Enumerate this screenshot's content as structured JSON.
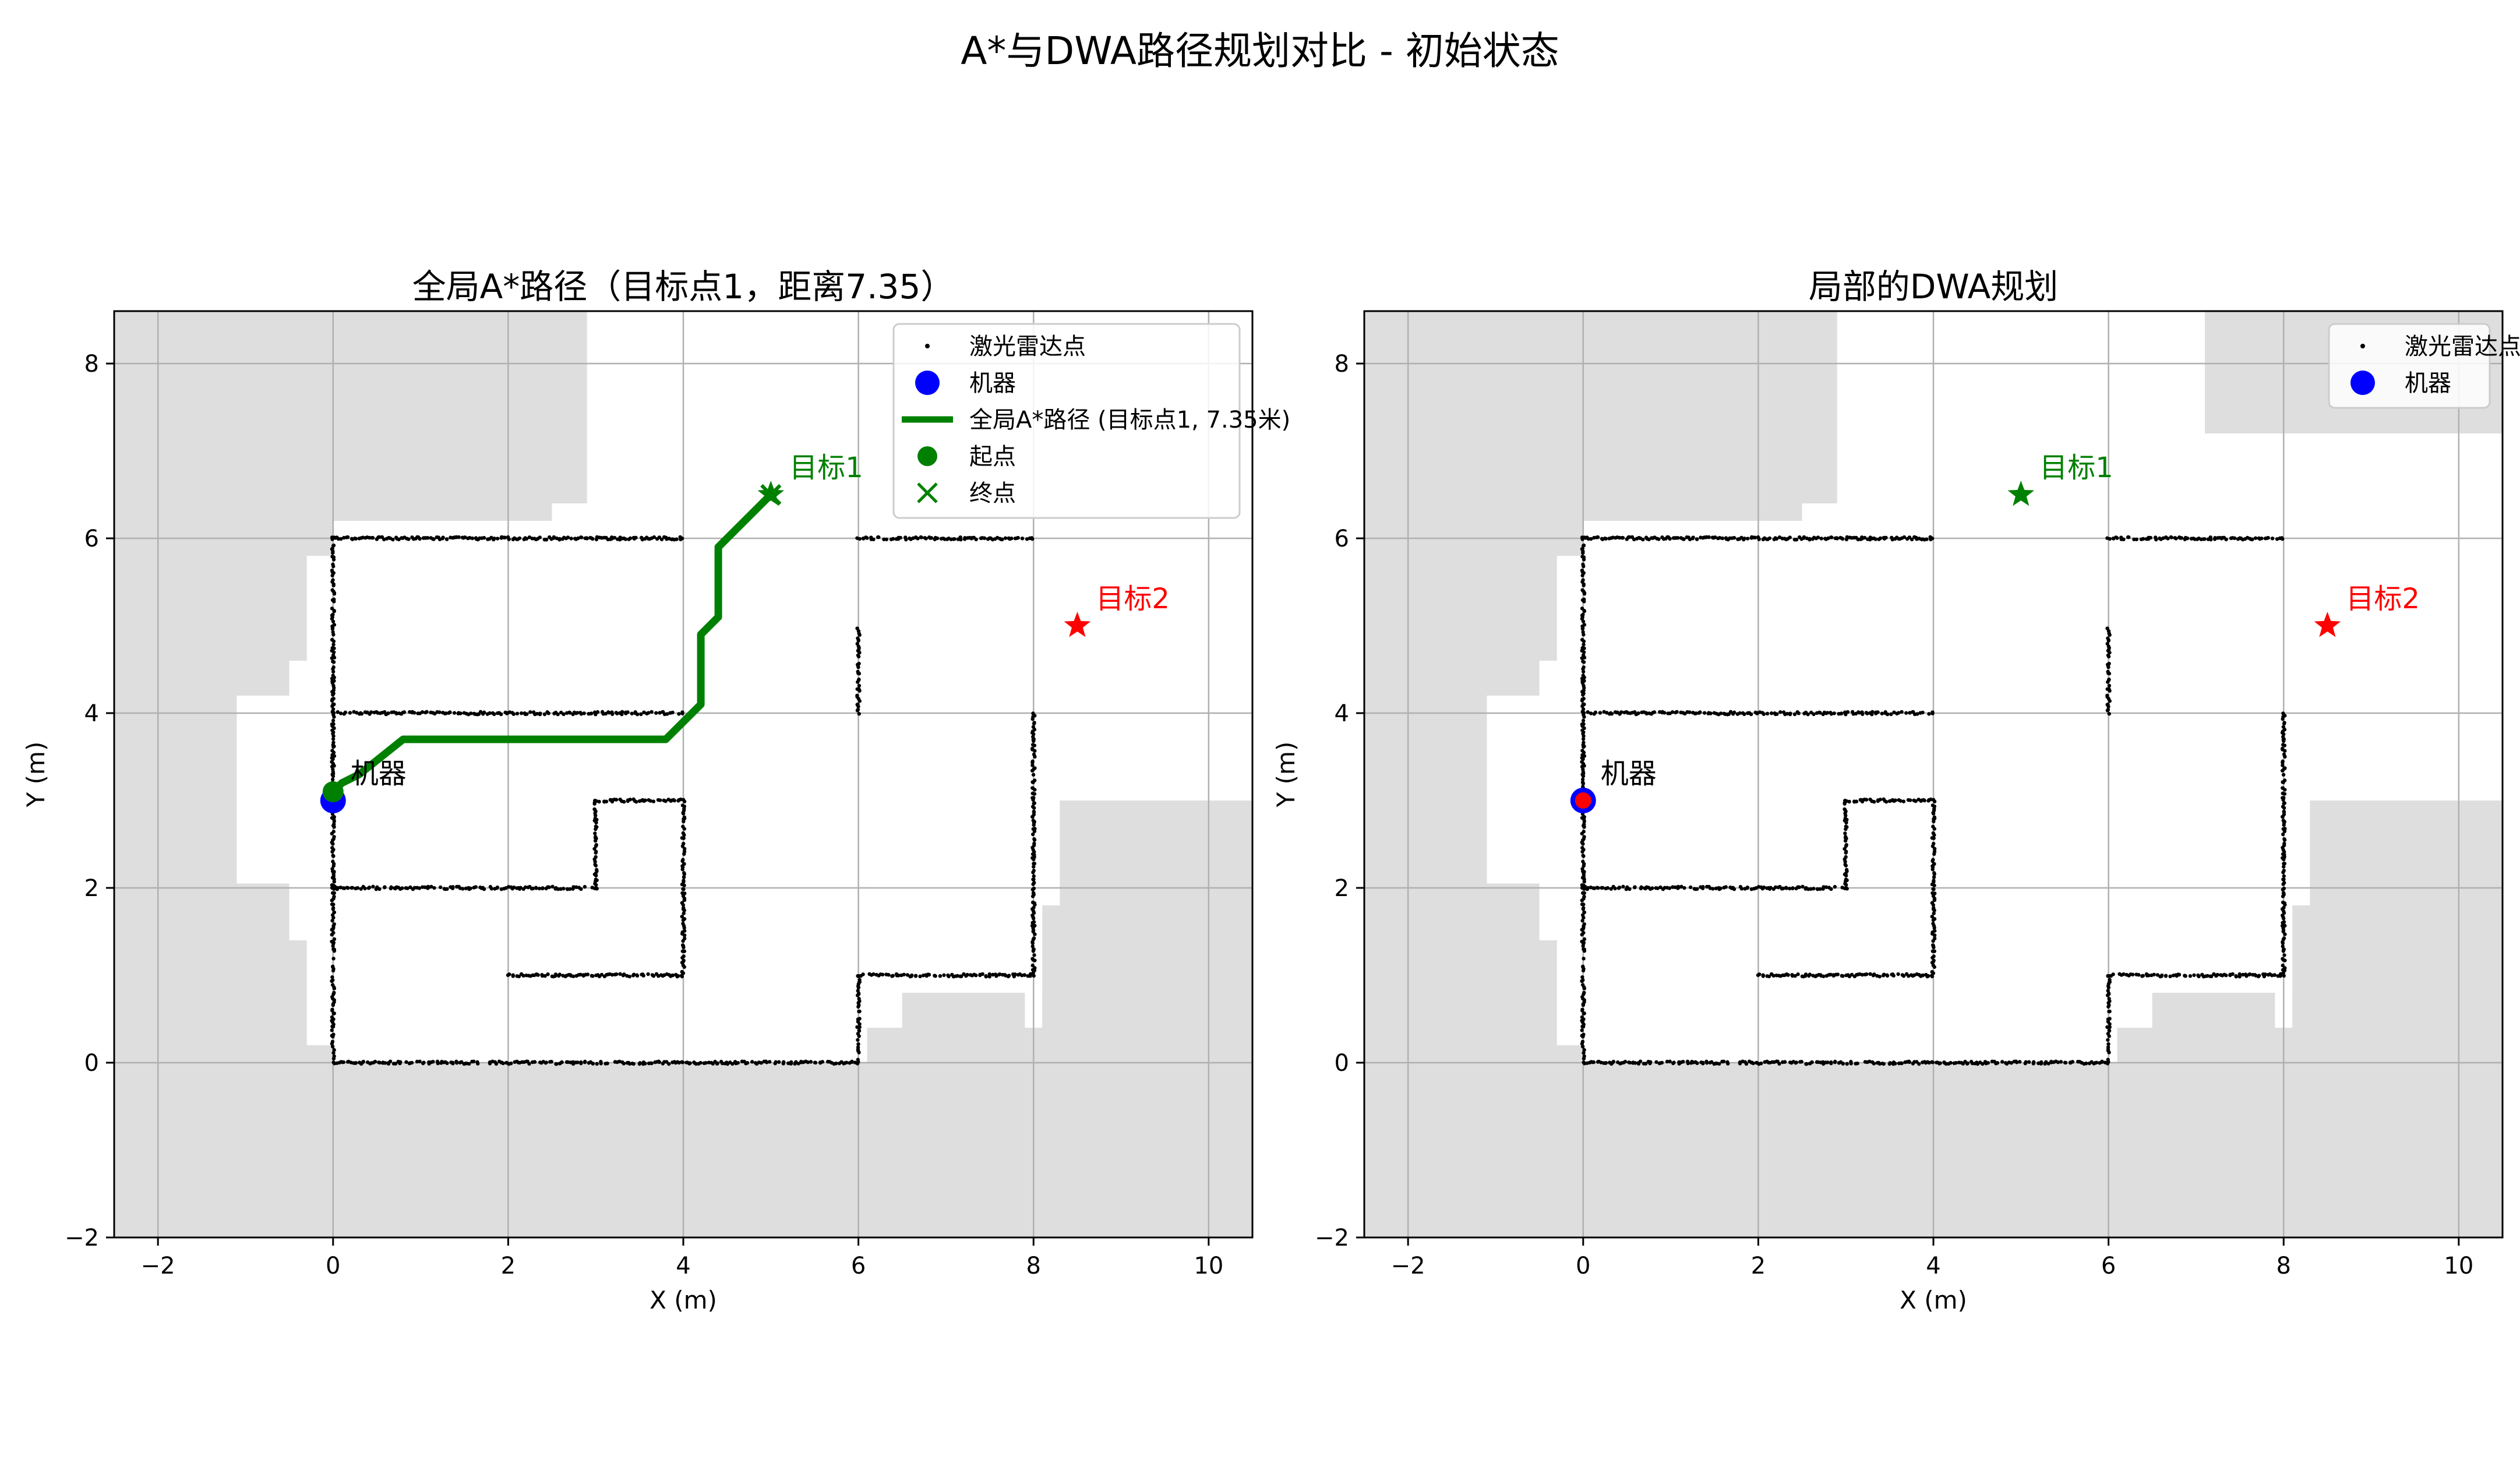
{
  "figure": {
    "suptitle": "A*与DWA路径规划对比 - 初始状态"
  },
  "chart_data": [
    {
      "type": "scatter",
      "title": "全局A*路径（目标点1，距离7.35）",
      "xlabel": "X (m)",
      "ylabel": "Y (m)",
      "xlim": [
        -2.5,
        10.5
      ],
      "ylim": [
        -2,
        8.6
      ],
      "xticks": [
        -2,
        0,
        2,
        4,
        6,
        8,
        10
      ],
      "yticks": [
        -2,
        0,
        2,
        4,
        6,
        8
      ],
      "grid": true,
      "legend_position": "top-right",
      "legend": [
        {
          "label": "激光雷达点",
          "marker": "point"
        },
        {
          "label": "机器",
          "marker": "circle-blue"
        },
        {
          "label": "全局A*路径 (目标点1, 7.35米)",
          "marker": "line-green"
        },
        {
          "label": "起点",
          "marker": "circle-green"
        },
        {
          "label": "终点",
          "marker": "x-green"
        }
      ],
      "robot": {
        "x": 0,
        "y": 3,
        "label": "机器",
        "color": "#0000ff"
      },
      "goals": [
        {
          "x": 5,
          "y": 6.5,
          "label": "目标1",
          "color": "#008000"
        },
        {
          "x": 8.5,
          "y": 5,
          "label": "目标2",
          "color": "#ff0000"
        }
      ],
      "path": {
        "color": "#008000",
        "points": [
          [
            0,
            3.1
          ],
          [
            0.1,
            3.2
          ],
          [
            0.3,
            3.3
          ],
          [
            0.8,
            3.7
          ],
          [
            3.8,
            3.7
          ],
          [
            4.2,
            4.1
          ],
          [
            4.2,
            4.9
          ],
          [
            4.4,
            5.1
          ],
          [
            4.4,
            5.9
          ],
          [
            5,
            6.5
          ]
        ]
      },
      "path_start": {
        "x": 0,
        "y": 3.1
      },
      "path_end": {
        "x": 5,
        "y": 6.5
      }
    },
    {
      "type": "scatter",
      "title": "局部的DWA规划",
      "xlabel": "X (m)",
      "ylabel": "Y (m)",
      "xlim": [
        -2.5,
        10.5
      ],
      "ylim": [
        -2,
        8.6
      ],
      "xticks": [
        -2,
        0,
        2,
        4,
        6,
        8,
        10
      ],
      "yticks": [
        -2,
        0,
        2,
        4,
        6,
        8
      ],
      "grid": true,
      "legend_position": "top-right",
      "legend": [
        {
          "label": "激光雷达点",
          "marker": "point"
        },
        {
          "label": "机器",
          "marker": "circle-blue"
        }
      ],
      "robot": {
        "x": 0,
        "y": 3,
        "label": "机器",
        "color": "#0000ff",
        "inner_color": "#ff0000"
      },
      "goals": [
        {
          "x": 5,
          "y": 6.5,
          "label": "目标1",
          "color": "#008000"
        },
        {
          "x": 8.5,
          "y": 5,
          "label": "目标2",
          "color": "#ff0000"
        }
      ]
    }
  ],
  "map": {
    "unknown_color": "#dedede",
    "free_color": "#ffffff",
    "point_color": "#000000",
    "free_regions": [
      [
        -1.1,
        2.05,
        0,
        4.2
      ],
      [
        -0.5,
        1.4,
        0,
        4.6
      ],
      [
        -0.3,
        0.2,
        0,
        5.8
      ],
      [
        0,
        0,
        2.5,
        6.2
      ],
      [
        2.5,
        0,
        2.9,
        6.4
      ],
      [
        2.9,
        0,
        6.1,
        8.6
      ],
      [
        6.1,
        0.8,
        8.3,
        8.6
      ],
      [
        7.1,
        0.8,
        10.5,
        7.2
      ],
      [
        8.3,
        3.0,
        10.5,
        7.2
      ],
      [
        8.0,
        1.8,
        8.3,
        3.0
      ],
      [
        7.9,
        0.4,
        8.1,
        1.8
      ],
      [
        6.1,
        0.4,
        6.5,
        0.8
      ],
      [
        6.5,
        0.8,
        7.0,
        0.8
      ]
    ],
    "unknown_regions_panel1": [
      [
        7.1,
        7.2,
        10.5,
        8.6
      ]
    ],
    "unknown_regions_panel2": [
      [
        7.1,
        7.2,
        10.5,
        8.6
      ]
    ],
    "walls": [
      [
        0,
        0,
        6,
        0
      ],
      [
        0,
        0,
        0,
        6
      ],
      [
        0,
        6,
        4,
        6
      ],
      [
        6,
        6,
        8,
        6
      ],
      [
        0,
        4,
        4,
        4
      ],
      [
        0,
        2,
        3,
        2
      ],
      [
        3,
        2,
        3,
        3
      ],
      [
        3,
        3,
        4,
        3
      ],
      [
        4,
        1,
        4,
        3
      ],
      [
        2,
        1,
        4,
        1
      ],
      [
        6,
        0,
        6,
        1
      ],
      [
        6,
        1,
        8,
        1
      ],
      [
        8,
        1,
        8,
        4
      ],
      [
        6,
        4,
        6,
        5
      ]
    ]
  }
}
